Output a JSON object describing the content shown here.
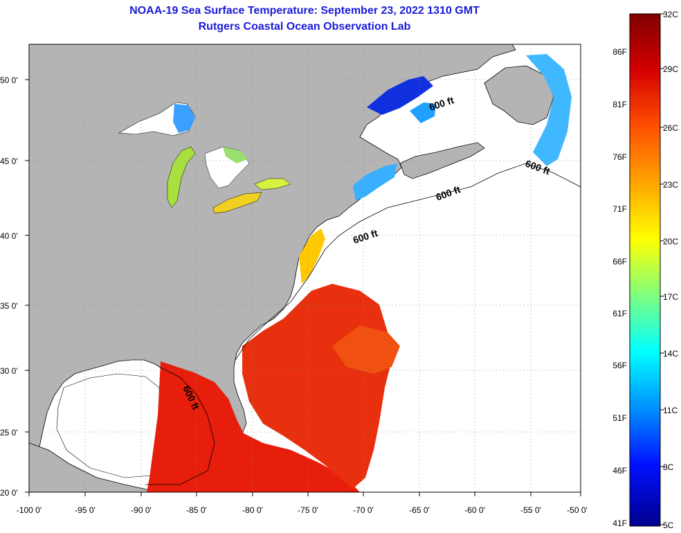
{
  "header": {
    "title": "NOAA-19 Sea Surface Temperature:  September 23, 2022 1310 GMT",
    "subtitle": "Rutgers Coastal Ocean Observation Lab"
  },
  "map": {
    "lon_labels": [
      "-100 0'",
      "-95 0'",
      "-90 0'",
      "-85 0'",
      "-80 0'",
      "-75 0'",
      "-70 0'",
      "-65 0'",
      "-60 0'",
      "-55 0'",
      "-50 0'"
    ],
    "lat_labels": [
      "50 0'",
      "45 0'",
      "40 0'",
      "35 0'",
      "30 0'",
      "25 0'",
      "20 0'"
    ],
    "isobath_labels": [
      "600 ft",
      "600 ft",
      "600 ft",
      "600 ft",
      "600 ft"
    ],
    "land_color": "#b4b4b4",
    "no_data_color": "#ffffff"
  },
  "colorbar": {
    "left_labels": [
      "86F",
      "81F",
      "76F",
      "71F",
      "66F",
      "61F",
      "56F",
      "51F",
      "46F",
      "41F"
    ],
    "right_labels": [
      "32C",
      "29C",
      "26C",
      "23C",
      "20C",
      "17C",
      "14C",
      "11C",
      "8C",
      "5C"
    ],
    "color_stops": [
      "#800000",
      "#d40000",
      "#ff5000",
      "#ffa500",
      "#ffff00",
      "#7fff7f",
      "#00ffff",
      "#0090ff",
      "#0010ff",
      "#00008f"
    ]
  }
}
